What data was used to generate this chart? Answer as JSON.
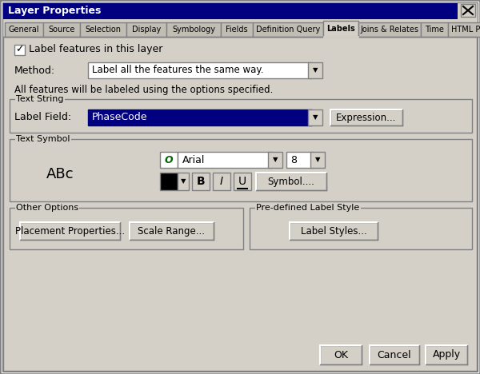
{
  "title": "Layer Properties",
  "title_bar_color": "#000080",
  "title_bar_text_color": "#ffffff",
  "dialog_bg": "#d4d0c8",
  "tabs": [
    "General",
    "Source",
    "Selection",
    "Display",
    "Symbology",
    "Fields",
    "Definition Query",
    "Labels",
    "Joins & Relates",
    "Time",
    "HTML Popup"
  ],
  "active_tab": "Labels",
  "checkbox_label": "Label features in this layer",
  "method_label": "Method:",
  "method_value": "Label all the features the same way.",
  "info_text": "All features will be labeled using the options specified.",
  "text_string_group": "Text String",
  "label_field_label": "Label Field:",
  "label_field_value": "PhaseCode",
  "expression_btn": "Expression...",
  "text_symbol_group": "Text Symbol",
  "font_name": "Arial",
  "font_size": "8",
  "preview_text": "ABc",
  "symbol_btn": "Symbol....",
  "other_options_group": "Other Options",
  "placement_btn": "Placement Properties...",
  "scale_range_btn": "Scale Range...",
  "predefined_group": "Pre-defined Label Style",
  "label_styles_btn": "Label Styles...",
  "ok_btn": "OK",
  "cancel_btn": "Cancel",
  "apply_btn": "Apply",
  "tab_widths": [
    48,
    46,
    58,
    50,
    68,
    40,
    88,
    44,
    78,
    34,
    68
  ]
}
